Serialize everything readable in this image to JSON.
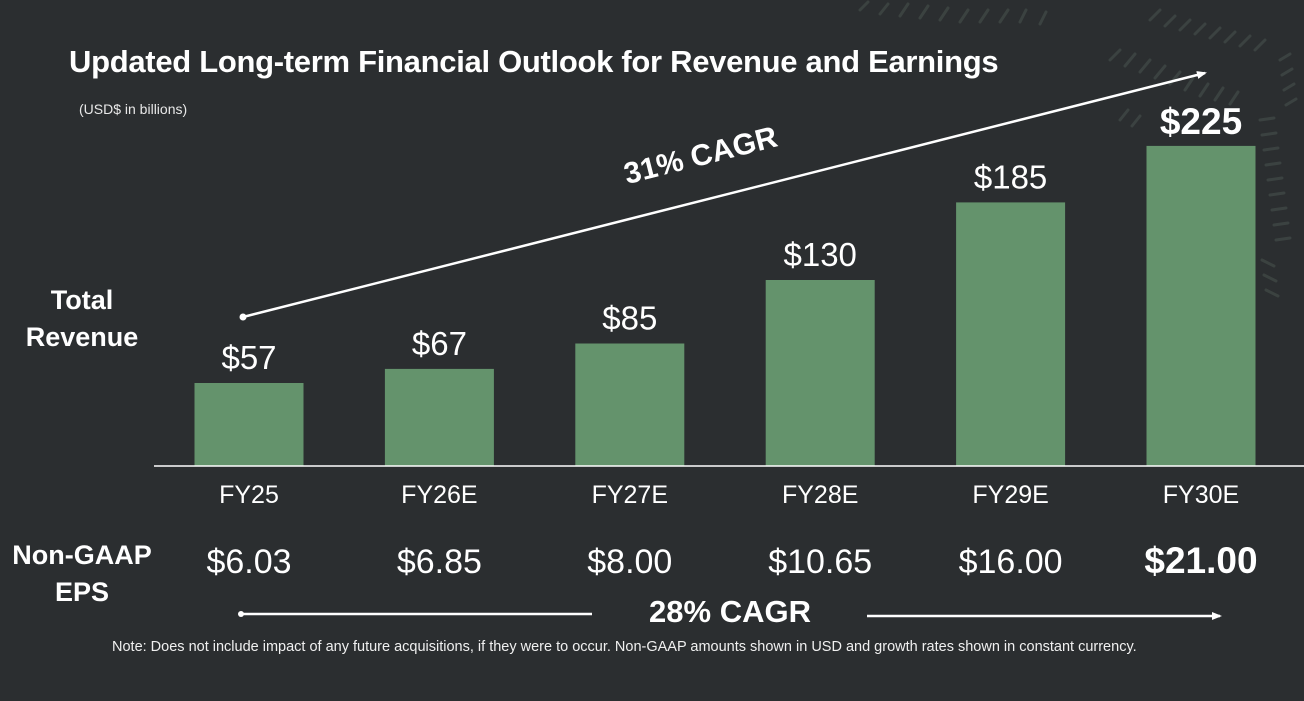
{
  "title": "Updated Long-term Financial Outlook for Revenue and Earnings",
  "subtitle": "(USD$ in billions)",
  "row_labels": {
    "revenue": "Total Revenue",
    "eps": "Non-GAAP EPS"
  },
  "colors": {
    "background": "#2b2e30",
    "bar": "#64936c",
    "text": "#ffffff"
  },
  "chart_data": {
    "type": "bar",
    "title": "Updated Long-term Financial Outlook for Revenue and Earnings",
    "subtitle": "(USD$ in billions)",
    "xlabel": "",
    "ylabel": "Total Revenue",
    "categories": [
      "FY25",
      "FY26E",
      "FY27E",
      "FY28E",
      "FY29E",
      "FY30E"
    ],
    "values": [
      57,
      67,
      85,
      130,
      185,
      225
    ],
    "value_labels": [
      "$57",
      "$67",
      "$85",
      "$130",
      "$185",
      "$225"
    ],
    "highlight_last": true,
    "grid": false,
    "revenue_cagr_annotation": "31% CAGR",
    "eps_series": {
      "name": "Non-GAAP EPS",
      "values": [
        6.03,
        6.85,
        8.0,
        10.65,
        16.0,
        21.0
      ],
      "labels": [
        "$6.03",
        "$6.85",
        "$8.00",
        "$10.65",
        "$16.00",
        "$21.00"
      ]
    },
    "eps_cagr_annotation": "28% CAGR"
  },
  "note": "Note: Does not include impact of any future acquisitions, if they were to occur. Non-GAAP amounts shown in USD and growth rates shown in constant currency."
}
